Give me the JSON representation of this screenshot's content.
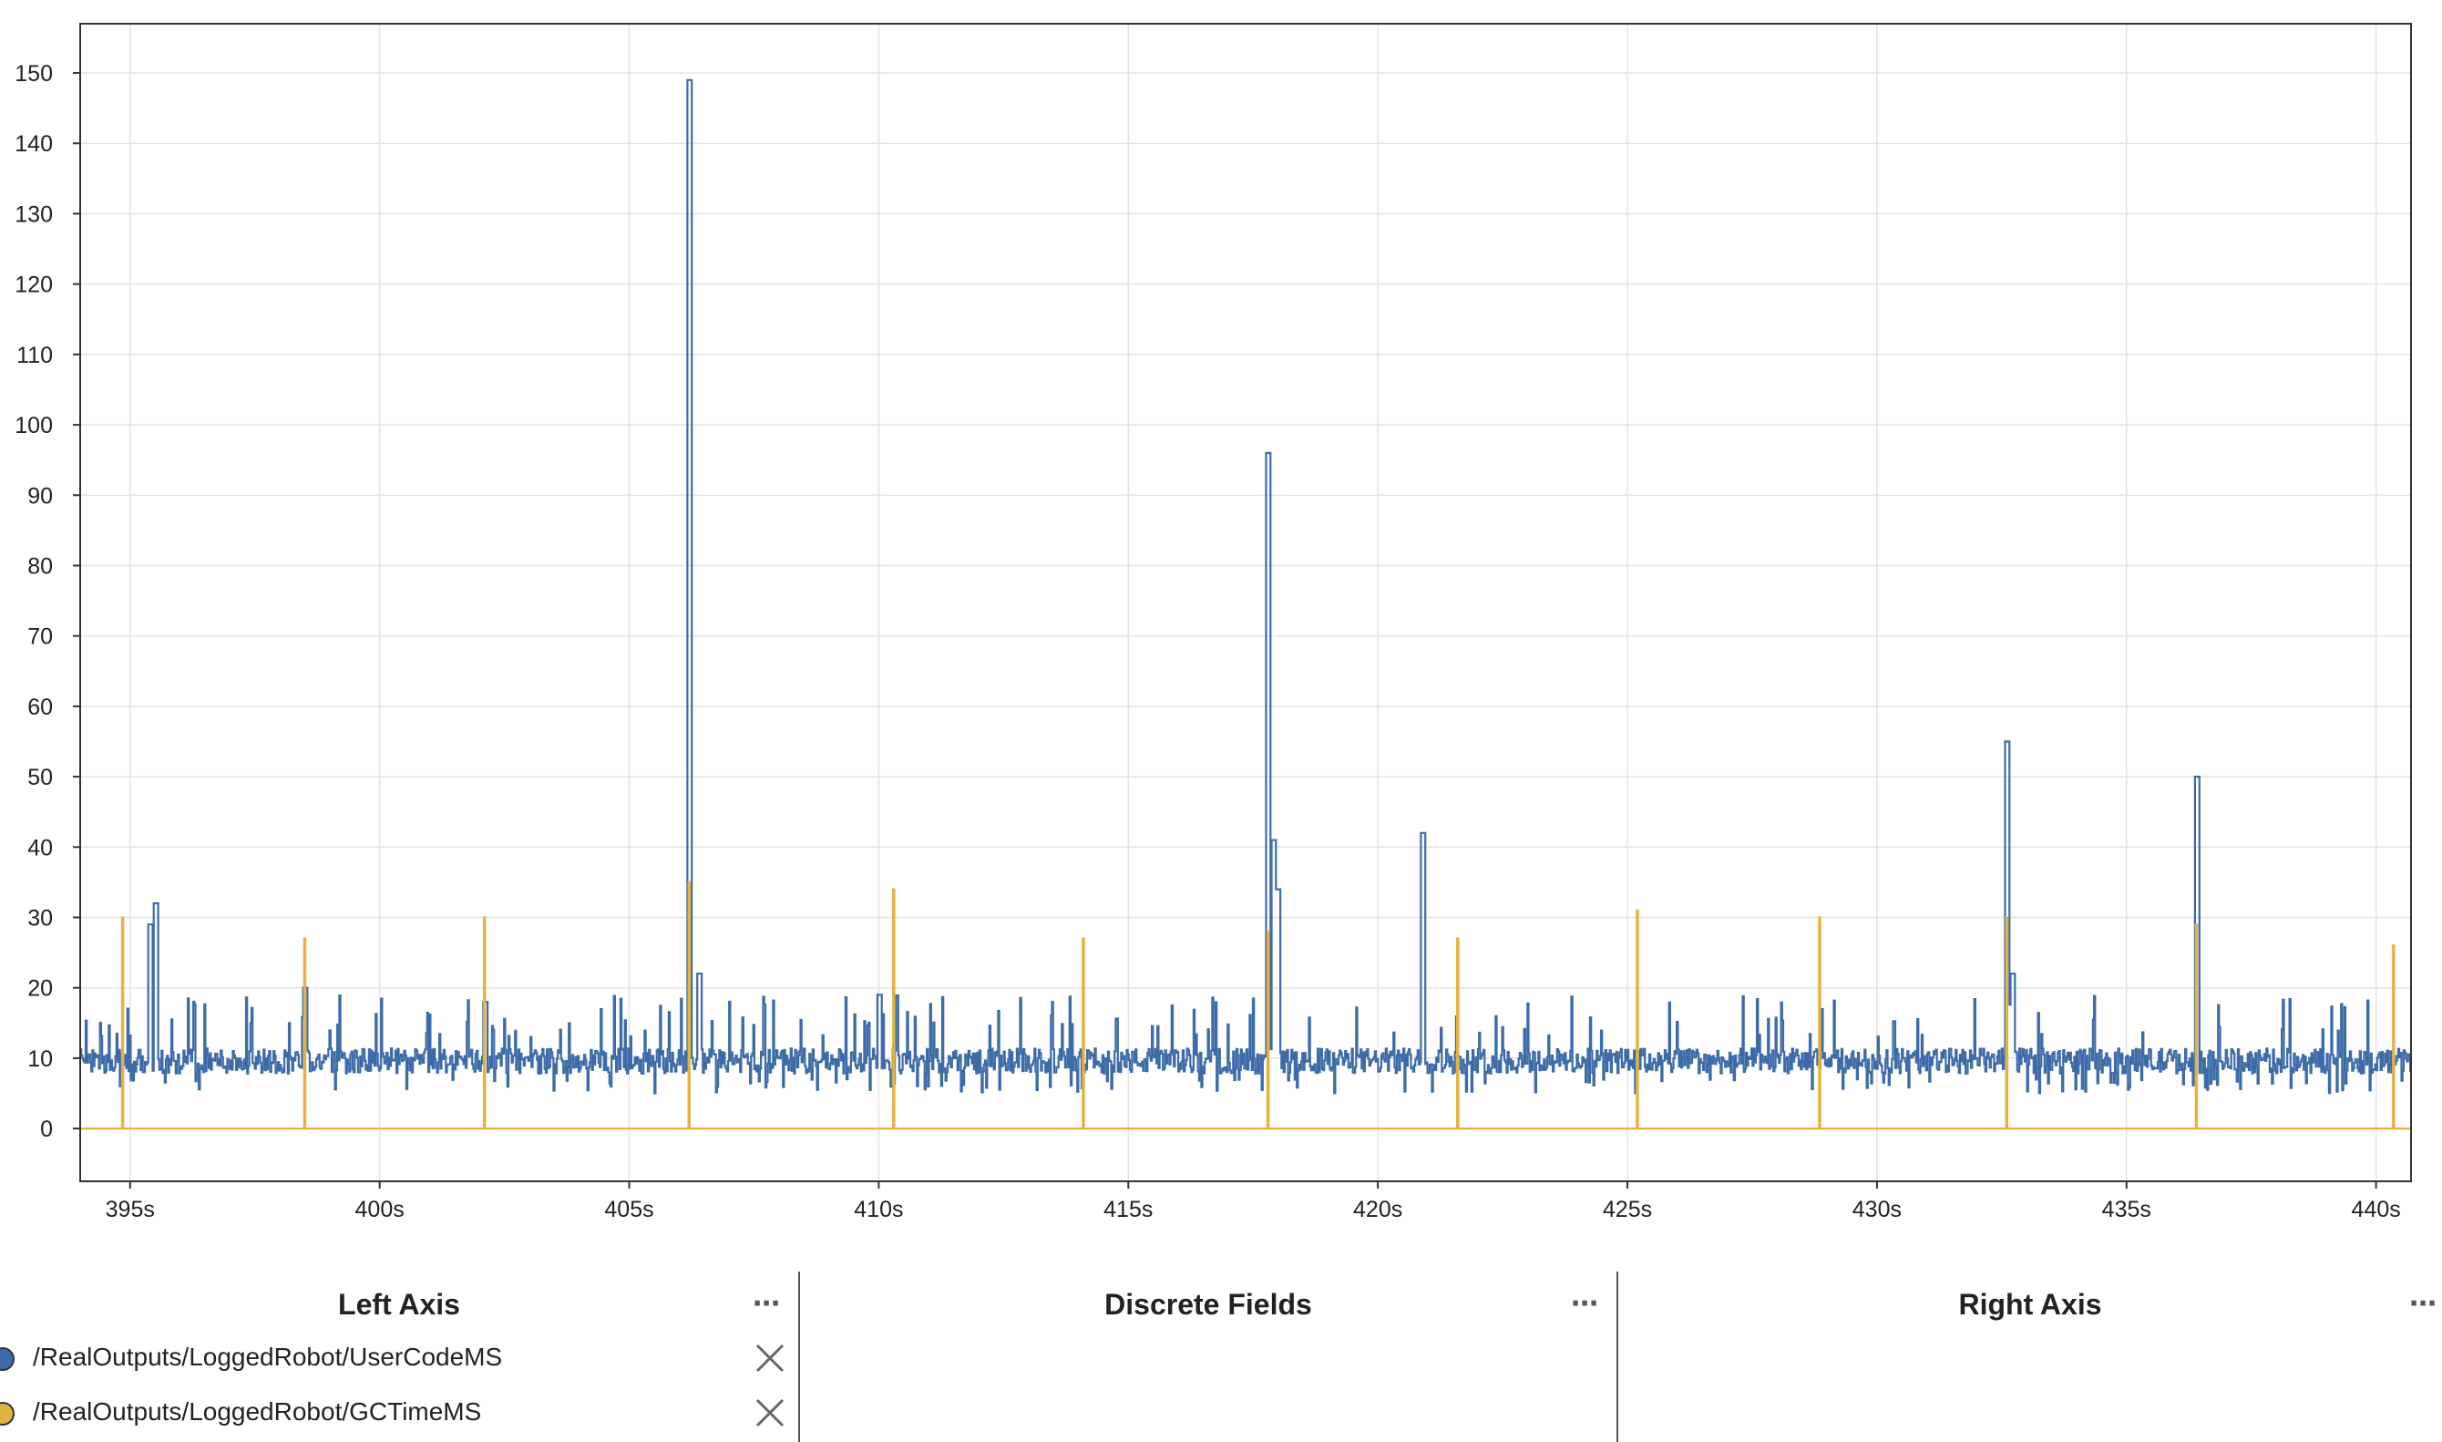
{
  "chart_data": {
    "type": "line",
    "step": true,
    "xlim": [
      394,
      440.7
    ],
    "ylim": [
      -7.5,
      157
    ],
    "x_ticks": [
      395,
      400,
      405,
      410,
      415,
      420,
      425,
      430,
      435,
      440
    ],
    "x_tick_labels": [
      "395s",
      "400s",
      "405s",
      "410s",
      "415s",
      "420s",
      "425s",
      "430s",
      "435s",
      "440s"
    ],
    "y_ticks": [
      0,
      10,
      20,
      30,
      40,
      50,
      60,
      70,
      80,
      90,
      100,
      110,
      120,
      130,
      140,
      150
    ],
    "y_tick_labels": [
      "0",
      "10",
      "20",
      "30",
      "40",
      "50",
      "60",
      "70",
      "80",
      "90",
      "100",
      "110",
      "120",
      "130",
      "140",
      "150"
    ],
    "grid": true,
    "series": [
      {
        "name": "/RealOutputs/LoggedRobot/UserCodeMS",
        "color": "#3d6ba8",
        "baseline_range": [
          5,
          13
        ],
        "spikes": [
          {
            "x": 395.4,
            "y": 29
          },
          {
            "x": 395.5,
            "y": 32
          },
          {
            "x": 398.5,
            "y": 20
          },
          {
            "x": 402.1,
            "y": 18
          },
          {
            "x": 406.2,
            "y": 149
          },
          {
            "x": 406.4,
            "y": 22
          },
          {
            "x": 410.0,
            "y": 19
          },
          {
            "x": 417.8,
            "y": 96
          },
          {
            "x": 417.9,
            "y": 41
          },
          {
            "x": 418.0,
            "y": 34
          },
          {
            "x": 420.9,
            "y": 42
          },
          {
            "x": 432.6,
            "y": 55
          },
          {
            "x": 432.7,
            "y": 22
          },
          {
            "x": 436.4,
            "y": 50
          }
        ]
      },
      {
        "name": "/RealOutputs/LoggedRobot/GCTimeMS",
        "color": "#e3b341",
        "baseline": 0,
        "spikes": [
          {
            "x": 394.85,
            "y": 30
          },
          {
            "x": 398.5,
            "y": 27
          },
          {
            "x": 402.1,
            "y": 30
          },
          {
            "x": 406.2,
            "y": 35
          },
          {
            "x": 410.3,
            "y": 34
          },
          {
            "x": 414.1,
            "y": 27
          },
          {
            "x": 417.8,
            "y": 28
          },
          {
            "x": 421.6,
            "y": 27
          },
          {
            "x": 425.2,
            "y": 31
          },
          {
            "x": 428.85,
            "y": 30
          },
          {
            "x": 432.6,
            "y": 30
          },
          {
            "x": 436.4,
            "y": 29
          },
          {
            "x": 440.35,
            "y": 26
          }
        ]
      }
    ]
  },
  "panels": {
    "left": {
      "title": "Left Axis",
      "menu_icon": "ellipsis-icon",
      "fields": [
        {
          "label": "/RealOutputs/LoggedRobot/UserCodeMS",
          "color": "#3d6ba8",
          "remove_icon": "close-icon"
        },
        {
          "label": "/RealOutputs/LoggedRobot/GCTimeMS",
          "color": "#e3b341",
          "remove_icon": "close-icon"
        }
      ]
    },
    "discrete": {
      "title": "Discrete Fields",
      "menu_icon": "ellipsis-icon"
    },
    "right": {
      "title": "Right Axis",
      "menu_icon": "ellipsis-icon"
    },
    "menu_label": "⋯"
  }
}
